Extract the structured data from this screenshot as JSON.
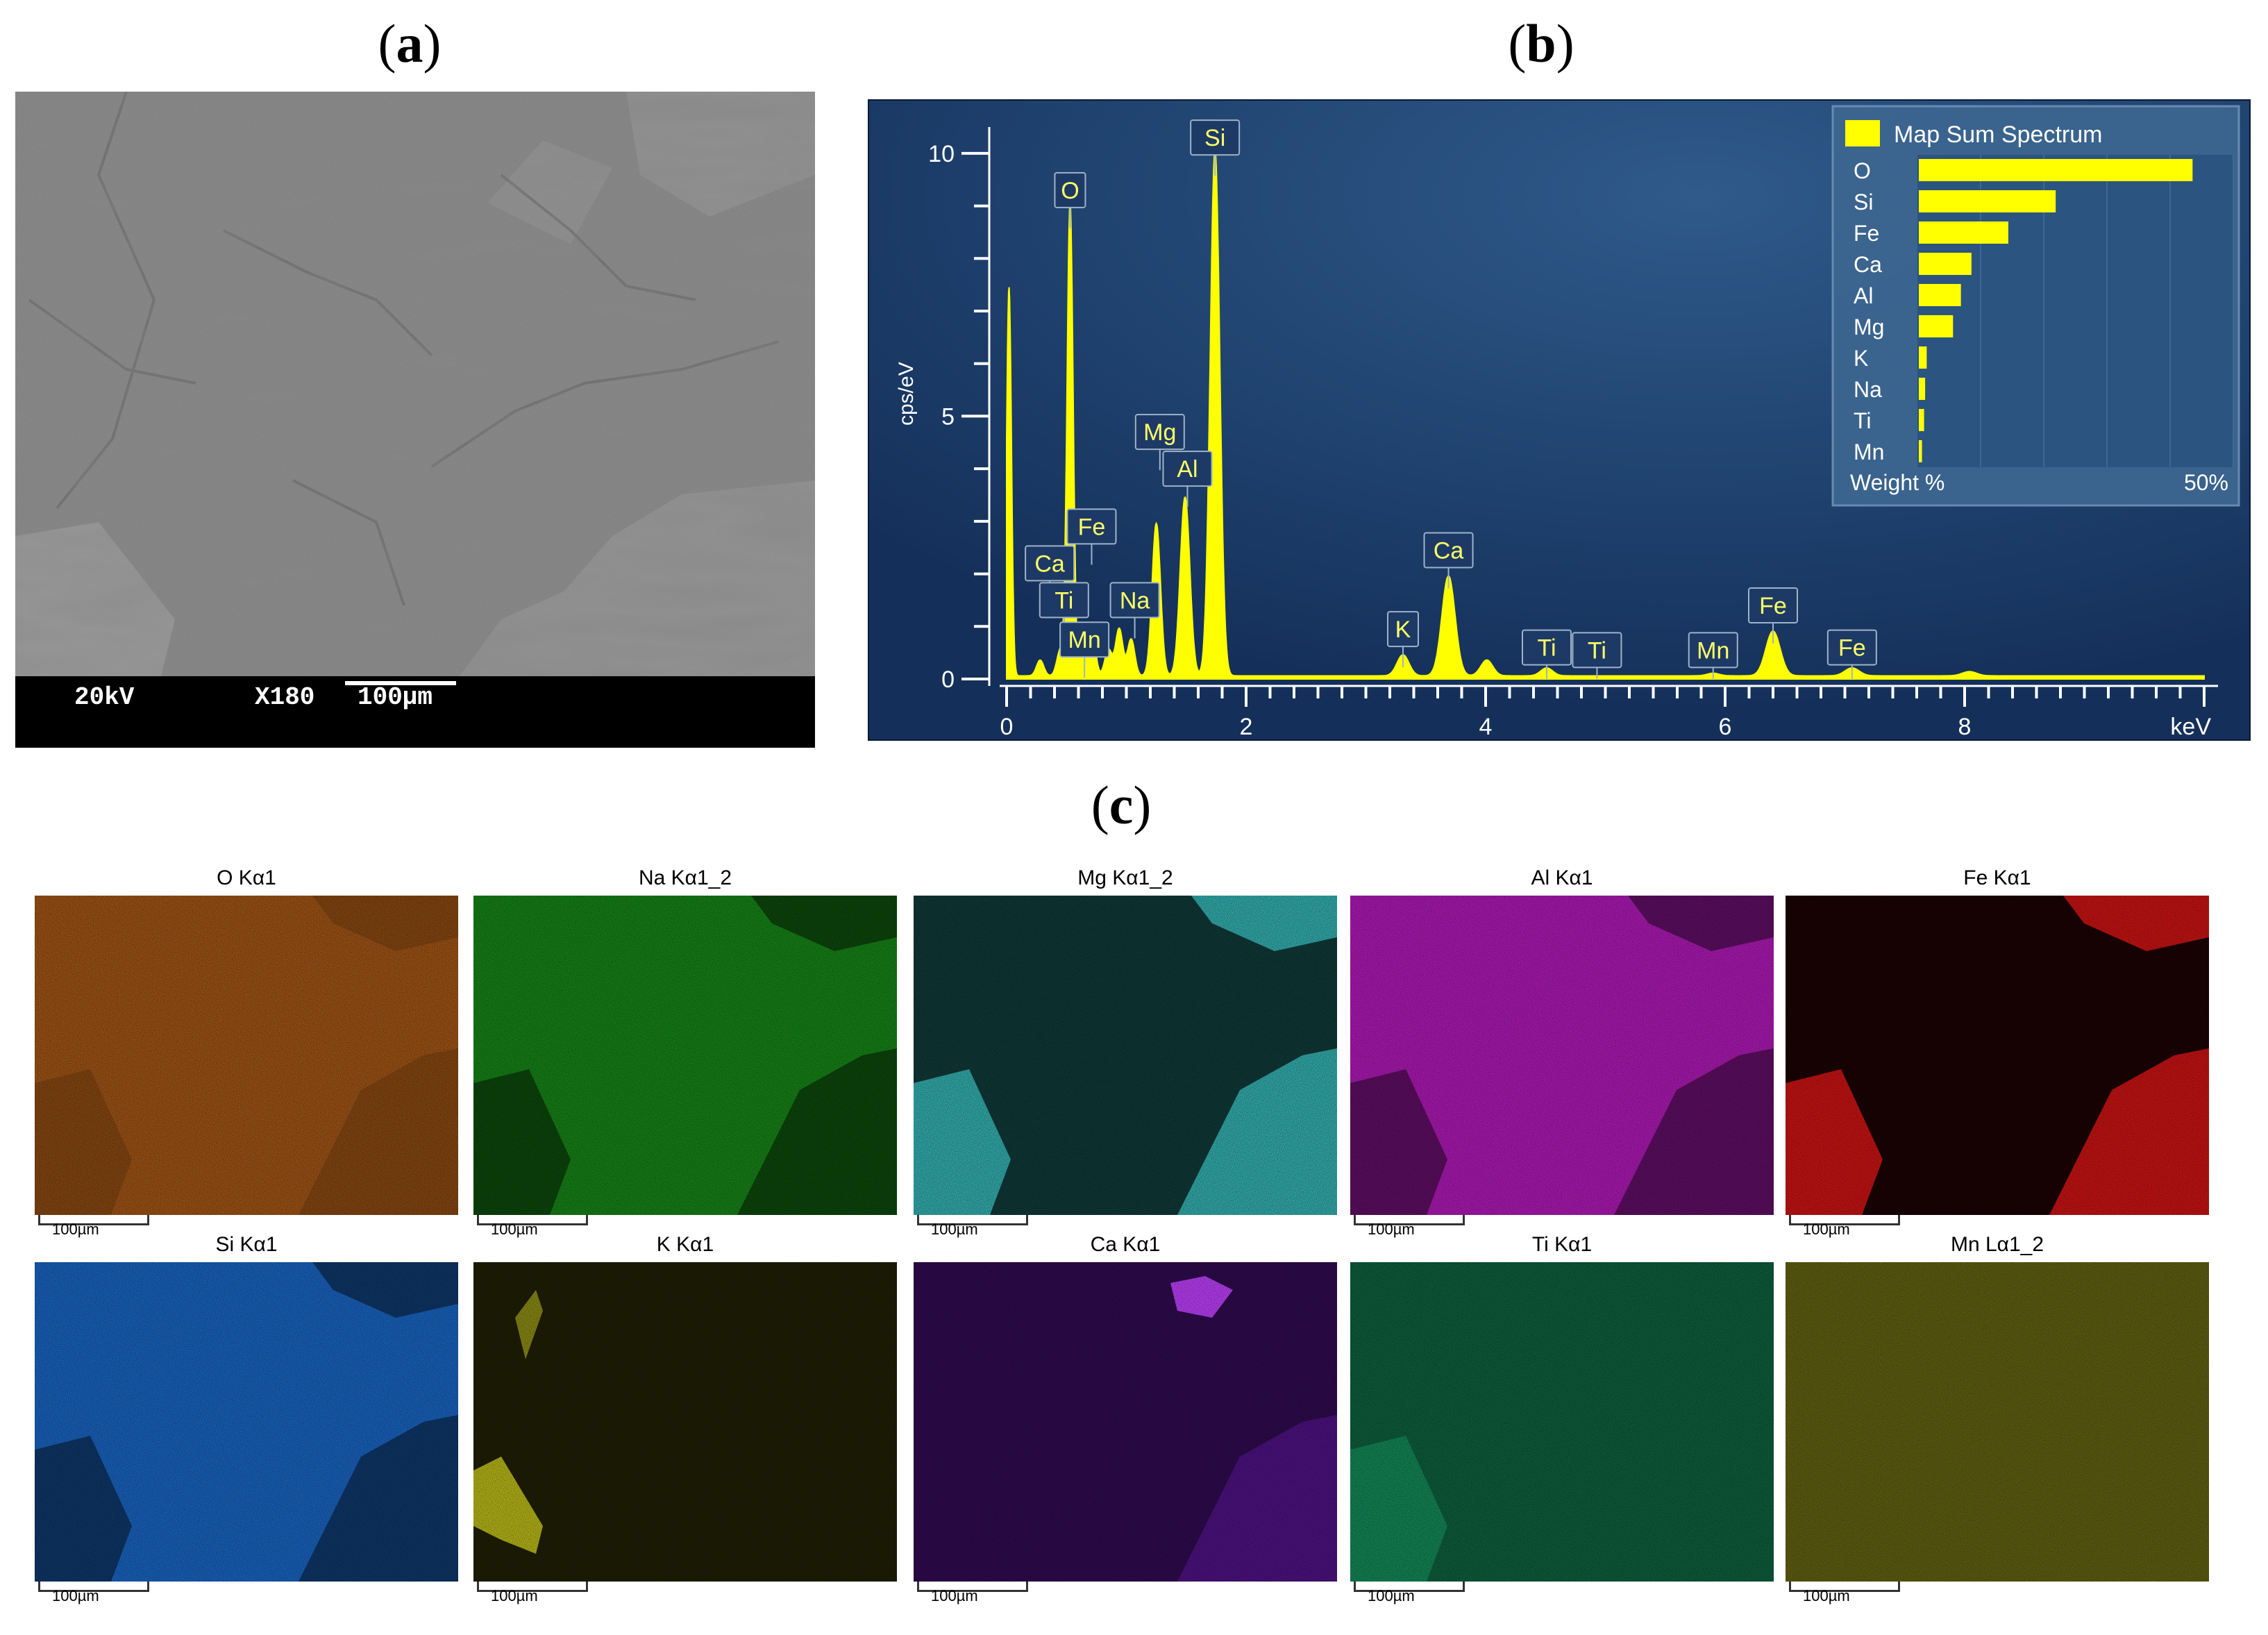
{
  "labels": {
    "a": "a",
    "b": "b",
    "c": "c"
  },
  "sem": {
    "voltage": "20kV",
    "magnification": "X180",
    "scale": "100µm"
  },
  "spectrum": {
    "y_label": "cps/eV",
    "x_unit": "keV",
    "legend_title": "Map Sum Spectrum",
    "weight_label": "Weight %",
    "weight_max_label": "50%",
    "colors": {
      "background": "#1d3a66",
      "trace": "#ffff00",
      "axis": "#ffffff",
      "label_text": "#ffff66"
    }
  },
  "chart_data": [
    {
      "type": "line",
      "title": "",
      "xlabel": "keV",
      "ylabel": "cps/eV",
      "xlim": [
        0,
        10
      ],
      "ylim": [
        0,
        10.5
      ],
      "x_ticks": [
        "0",
        "2",
        "4",
        "6",
        "8",
        "keV"
      ],
      "y_ticks": [
        "0",
        "5",
        "10"
      ],
      "peaks": [
        {
          "x": 0.02,
          "y": 7.4,
          "width": 0.02
        },
        {
          "x": 0.28,
          "y": 0.3,
          "width": 0.03
        },
        {
          "x": 0.45,
          "y": 0.5,
          "width": 0.03
        },
        {
          "x": 0.53,
          "y": 9.0,
          "width": 0.025
        },
        {
          "x": 0.64,
          "y": 0.6,
          "width": 0.03
        },
        {
          "x": 0.71,
          "y": 0.9,
          "width": 0.03
        },
        {
          "x": 0.85,
          "y": 0.5,
          "width": 0.03
        },
        {
          "x": 0.94,
          "y": 0.9,
          "width": 0.03
        },
        {
          "x": 1.04,
          "y": 0.7,
          "width": 0.03
        },
        {
          "x": 1.25,
          "y": 2.9,
          "width": 0.035
        },
        {
          "x": 1.49,
          "y": 3.4,
          "width": 0.04
        },
        {
          "x": 1.74,
          "y": 10.0,
          "width": 0.04
        },
        {
          "x": 3.31,
          "y": 0.4,
          "width": 0.05
        },
        {
          "x": 3.69,
          "y": 1.9,
          "width": 0.055
        },
        {
          "x": 4.01,
          "y": 0.3,
          "width": 0.05
        },
        {
          "x": 4.51,
          "y": 0.15,
          "width": 0.05
        },
        {
          "x": 5.9,
          "y": 0.05,
          "width": 0.05
        },
        {
          "x": 6.4,
          "y": 0.85,
          "width": 0.06
        },
        {
          "x": 7.06,
          "y": 0.15,
          "width": 0.06
        },
        {
          "x": 8.04,
          "y": 0.08,
          "width": 0.06
        }
      ],
      "peak_labels": [
        {
          "text": "O",
          "x": 0.53,
          "y": 9.3
        },
        {
          "text": "Si",
          "x": 1.74,
          "y": 10.3
        },
        {
          "text": "Mg",
          "x": 1.28,
          "y": 4.7
        },
        {
          "text": "Al",
          "x": 1.51,
          "y": 4.0
        },
        {
          "text": "Fe",
          "x": 0.71,
          "y": 2.9
        },
        {
          "text": "Ca",
          "x": 0.36,
          "y": 2.2
        },
        {
          "text": "Ti",
          "x": 0.48,
          "y": 1.5
        },
        {
          "text": "Na",
          "x": 1.07,
          "y": 1.5
        },
        {
          "text": "Mn",
          "x": 0.65,
          "y": 0.75
        },
        {
          "text": "Ca",
          "x": 3.69,
          "y": 2.45
        },
        {
          "text": "K",
          "x": 3.31,
          "y": 0.95
        },
        {
          "text": "Ti",
          "x": 4.51,
          "y": 0.6
        },
        {
          "text": "Ti",
          "x": 4.93,
          "y": 0.55
        },
        {
          "text": "Mn",
          "x": 5.9,
          "y": 0.55
        },
        {
          "text": "Fe",
          "x": 6.4,
          "y": 1.4
        },
        {
          "text": "Fe",
          "x": 7.06,
          "y": 0.6
        }
      ]
    },
    {
      "type": "bar",
      "title": "Map Sum Spectrum",
      "xlabel": "Weight %",
      "xlim": [
        0,
        60
      ],
      "categories": [
        "O",
        "Si",
        "Fe",
        "Ca",
        "Al",
        "Mg",
        "K",
        "Na",
        "Ti",
        "Mn"
      ],
      "values": [
        52,
        26,
        17,
        10,
        8,
        6.5,
        1.5,
        1.2,
        1.0,
        0.6
      ]
    }
  ],
  "maps": [
    {
      "title": "O Kα1",
      "scale": "100µm",
      "color": "#c0651a"
    },
    {
      "title": "Na Kα1_2",
      "scale": "100µm",
      "color": "#1fb31f"
    },
    {
      "title": "Mg Kα1_2",
      "scale": "100µm",
      "color": "#39c0c0"
    },
    {
      "title": "Al Kα1",
      "scale": "100µm",
      "color": "#d01fd8"
    },
    {
      "title": "Fe Kα1",
      "scale": "100µm",
      "color": "#e21515"
    },
    {
      "title": "Si Kα1",
      "scale": "100µm",
      "color": "#1f78e8"
    },
    {
      "title": "K Kα1",
      "scale": "100µm",
      "color": "#d8d81f"
    },
    {
      "title": "Ca Kα1",
      "scale": "100µm",
      "color": "#8a1fe8"
    },
    {
      "title": "Ti Kα1",
      "scale": "100µm",
      "color": "#1fd88a"
    },
    {
      "title": "Mn Lα1_2",
      "scale": "100µm",
      "color": "#b5b51f"
    }
  ]
}
